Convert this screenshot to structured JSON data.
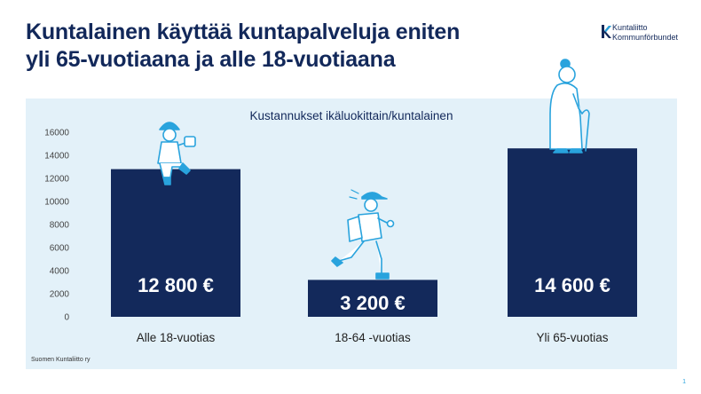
{
  "title_line1": "Kuntalainen käyttää kuntapalveluja eniten",
  "title_line2": "yli 65-vuotiaana ja alle 18-vuotiaana",
  "logo": {
    "line1": "Kuntaliitto",
    "line2": "Kommunförbundet"
  },
  "source": "Suomen Kuntaliitto ry",
  "page_number": "1",
  "colors": {
    "bar": "#13295b",
    "accent": "#29a3dd",
    "panel": "#e3f1f9",
    "title": "#12285a"
  },
  "icons": [
    "child-figure-icon",
    "runner-figure-icon",
    "elderly-figure-icon",
    "kuntaliitto-logo-icon"
  ],
  "chart_data": {
    "type": "bar",
    "title": "Kustannukset ikäluokittain/kuntalainen",
    "categories": [
      "Alle 18-vuotias",
      "18-64 -vuotias",
      "Yli 65-vuotias"
    ],
    "values": [
      12800,
      3200,
      14600
    ],
    "value_labels": [
      "12 800 €",
      "3 200 €",
      "14 600 €"
    ],
    "ylim": [
      0,
      16000
    ],
    "yticks": [
      0,
      2000,
      4000,
      6000,
      8000,
      10000,
      12000,
      14000,
      16000
    ],
    "grid": false,
    "legend": "none"
  }
}
